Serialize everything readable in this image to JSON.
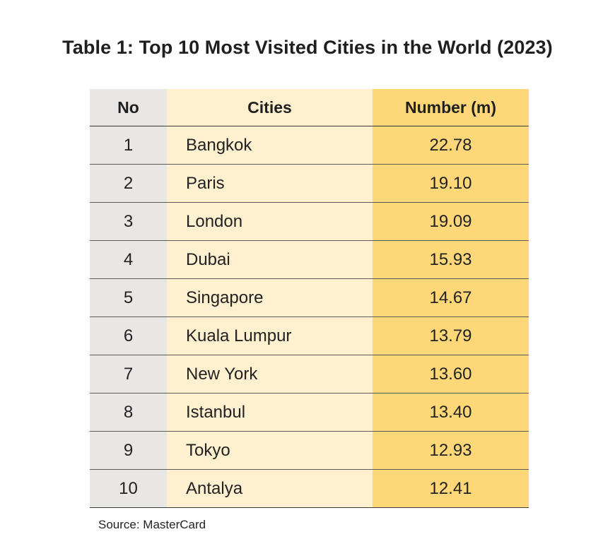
{
  "title": "Table 1: Top 10 Most Visited Cities in the World (2023)",
  "colors": {
    "no_column": "#e9e6e6",
    "cities_column": "#fff1cf",
    "number_column": "#fed878"
  },
  "table": {
    "headers": [
      "No",
      "Cities",
      "Number (m)"
    ],
    "rows": [
      {
        "no": "1",
        "city": "Bangkok",
        "number": "22.78"
      },
      {
        "no": "2",
        "city": "Paris",
        "number": "19.10"
      },
      {
        "no": "3",
        "city": "London",
        "number": "19.09"
      },
      {
        "no": "4",
        "city": "Dubai",
        "number": "15.93"
      },
      {
        "no": "5",
        "city": "Singapore",
        "number": "14.67"
      },
      {
        "no": "6",
        "city": "Kuala Lumpur",
        "number": "13.79"
      },
      {
        "no": "7",
        "city": "New York",
        "number": "13.60"
      },
      {
        "no": "8",
        "city": "Istanbul",
        "number": "13.40"
      },
      {
        "no": "9",
        "city": "Tokyo",
        "number": "12.93"
      },
      {
        "no": "10",
        "city": "Antalya",
        "number": "12.41"
      }
    ]
  },
  "source": "Source: MasterCard"
}
